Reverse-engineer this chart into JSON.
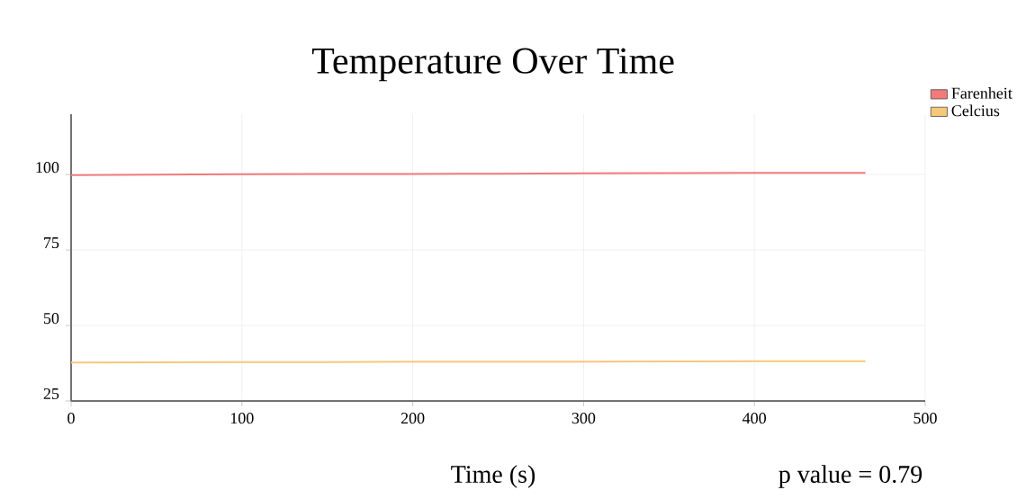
{
  "chart_data": {
    "type": "line",
    "title": "Temperature Over Time",
    "xlabel": "Time (s)",
    "series": [
      {
        "name": "Farenheit",
        "color": "#f27a7a",
        "x": [
          0,
          50,
          100,
          150,
          200,
          250,
          300,
          350,
          400,
          465
        ],
        "values": [
          99.8,
          100.0,
          100.1,
          100.2,
          100.2,
          100.3,
          100.4,
          100.5,
          100.6,
          100.6
        ]
      },
      {
        "name": "Celcius",
        "color": "#f7c77a",
        "x": [
          0,
          50,
          100,
          150,
          200,
          250,
          300,
          350,
          400,
          465
        ],
        "values": [
          37.7,
          37.8,
          37.9,
          37.9,
          38.0,
          38.0,
          38.0,
          38.1,
          38.2,
          38.2
        ]
      }
    ],
    "xlim": [
      0,
      500
    ],
    "ylim": [
      25,
      120
    ],
    "xticks": [
      0,
      100,
      200,
      300,
      400,
      500
    ],
    "yticks": [
      25,
      50,
      75,
      100
    ],
    "grid": true,
    "legend": "top right",
    "marker": "none",
    "line_style": "solid",
    "annotations": [
      "p value = 0.79"
    ]
  }
}
